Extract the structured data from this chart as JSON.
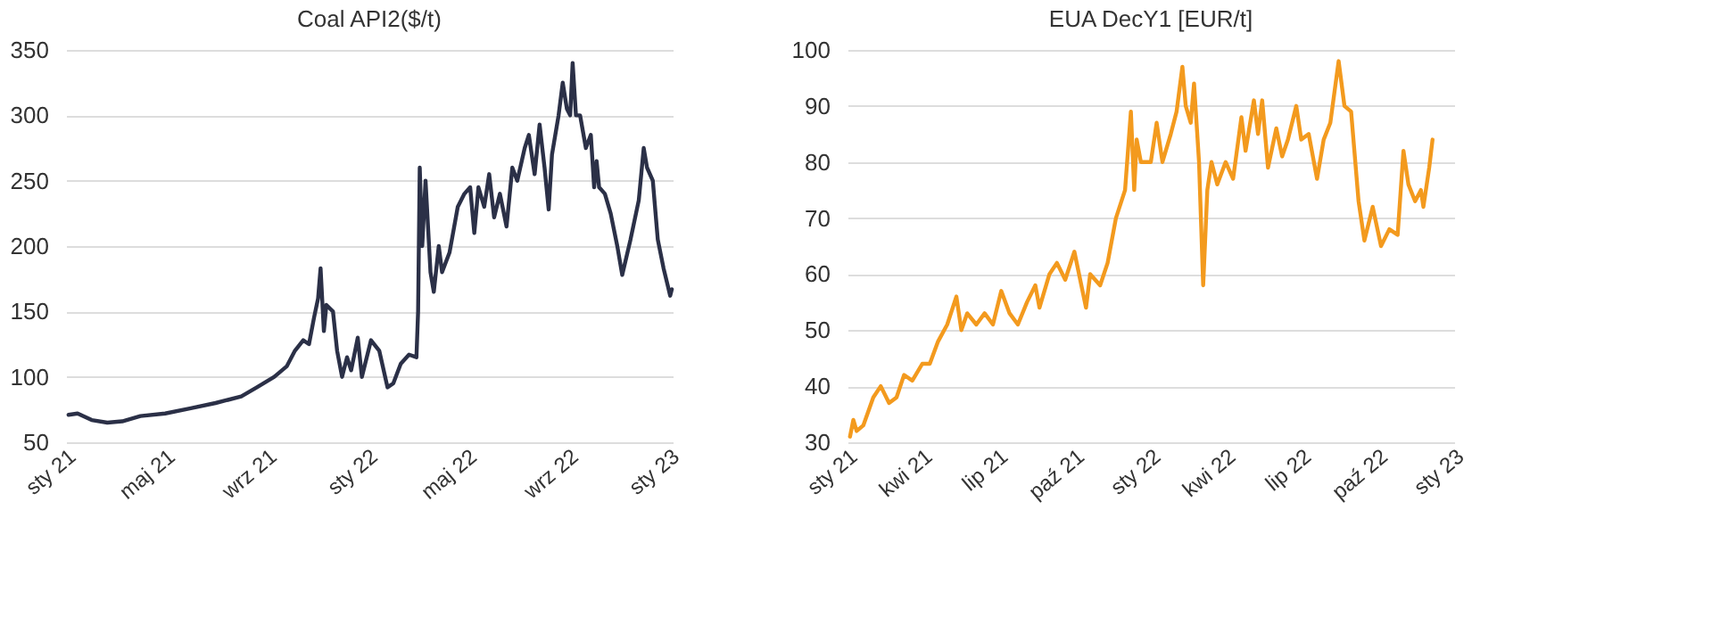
{
  "chart_data": [
    {
      "type": "line",
      "title": "Coal API2($/t)",
      "grid": "y",
      "line_style": "solid",
      "marker": "none",
      "x": [
        "2021-01-04",
        "2021-01-15",
        "2021-02-01",
        "2021-02-20",
        "2021-03-10",
        "2021-04-01",
        "2021-05-01",
        "2021-06-01",
        "2021-07-01",
        "2021-08-01",
        "2021-08-20",
        "2021-09-10",
        "2021-09-25",
        "2021-10-05",
        "2021-10-15",
        "2021-10-22",
        "2021-10-28",
        "2021-11-02",
        "2021-11-05",
        "2021-11-09",
        "2021-11-12",
        "2021-11-20",
        "2021-11-25",
        "2021-12-01",
        "2021-12-07",
        "2021-12-12",
        "2021-12-20",
        "2021-12-25",
        "2022-01-05",
        "2022-01-15",
        "2022-01-25",
        "2022-02-01",
        "2022-02-10",
        "2022-02-20",
        "2022-03-01",
        "2022-03-03",
        "2022-03-05",
        "2022-03-08",
        "2022-03-12",
        "2022-03-18",
        "2022-03-22",
        "2022-03-28",
        "2022-04-01",
        "2022-04-10",
        "2022-04-20",
        "2022-04-28",
        "2022-05-05",
        "2022-05-10",
        "2022-05-15",
        "2022-05-22",
        "2022-05-28",
        "2022-06-03",
        "2022-06-10",
        "2022-06-18",
        "2022-06-25",
        "2022-07-01",
        "2022-07-10",
        "2022-07-15",
        "2022-07-22",
        "2022-07-28",
        "2022-08-03",
        "2022-08-08",
        "2022-08-12",
        "2022-08-20",
        "2022-08-25",
        "2022-08-30",
        "2022-09-03",
        "2022-09-06",
        "2022-09-10",
        "2022-09-15",
        "2022-09-22",
        "2022-09-28",
        "2022-10-02",
        "2022-10-05",
        "2022-10-08",
        "2022-10-15",
        "2022-10-22",
        "2022-10-30",
        "2022-11-05",
        "2022-11-15",
        "2022-11-25",
        "2022-12-01",
        "2022-12-05",
        "2022-12-12",
        "2022-12-18",
        "2022-12-25",
        "2022-12-30",
        "2023-01-02",
        "2023-01-04"
      ],
      "series": [
        {
          "color": "#2b3047",
          "values": [
            71,
            72,
            67,
            65,
            66,
            70,
            72,
            76,
            80,
            85,
            92,
            100,
            108,
            120,
            128,
            125,
            145,
            160,
            183,
            135,
            155,
            150,
            120,
            100,
            115,
            105,
            130,
            100,
            128,
            120,
            92,
            95,
            110,
            117,
            115,
            150,
            260,
            200,
            250,
            180,
            165,
            200,
            180,
            195,
            230,
            240,
            245,
            210,
            245,
            230,
            255,
            222,
            240,
            215,
            260,
            250,
            275,
            285,
            255,
            293,
            260,
            228,
            270,
            300,
            325,
            305,
            300,
            340,
            300,
            300,
            275,
            285,
            245,
            265,
            245,
            240,
            225,
            200,
            178,
            205,
            235,
            275,
            260,
            250,
            205,
            183,
            170,
            162,
            167
          ]
        }
      ],
      "xlim": [
        "2021-01-01",
        "2023-01-05"
      ],
      "xticks": [
        {
          "value": "2021-01-01",
          "label": "sty 21"
        },
        {
          "value": "2021-05-01",
          "label": "maj 21"
        },
        {
          "value": "2021-09-01",
          "label": "wrz 21"
        },
        {
          "value": "2022-01-01",
          "label": "sty 22"
        },
        {
          "value": "2022-05-01",
          "label": "maj 22"
        },
        {
          "value": "2022-09-01",
          "label": "wrz 22"
        },
        {
          "value": "2023-01-01",
          "label": "sty 23"
        }
      ],
      "ylim": [
        50,
        350
      ],
      "yticks": [
        50,
        100,
        150,
        200,
        250,
        300,
        350
      ]
    },
    {
      "type": "line",
      "title": "EUA DecY1 [EUR/t]",
      "grid": "y",
      "line_style": "solid",
      "marker": "none",
      "x": [
        "2021-01-04",
        "2021-01-08",
        "2021-01-12",
        "2021-01-20",
        "2021-02-01",
        "2021-02-10",
        "2021-02-20",
        "2021-03-01",
        "2021-03-10",
        "2021-03-20",
        "2021-04-01",
        "2021-04-10",
        "2021-04-20",
        "2021-05-01",
        "2021-05-12",
        "2021-05-18",
        "2021-05-25",
        "2021-06-05",
        "2021-06-15",
        "2021-06-25",
        "2021-07-05",
        "2021-07-15",
        "2021-07-25",
        "2021-08-05",
        "2021-08-15",
        "2021-08-20",
        "2021-09-01",
        "2021-09-10",
        "2021-09-20",
        "2021-10-01",
        "2021-10-08",
        "2021-10-15",
        "2021-10-20",
        "2021-11-01",
        "2021-11-10",
        "2021-11-20",
        "2021-12-01",
        "2021-12-08",
        "2021-12-12",
        "2021-12-15",
        "2021-12-20",
        "2022-01-01",
        "2022-01-08",
        "2022-01-15",
        "2022-01-25",
        "2022-02-01",
        "2022-02-08",
        "2022-02-12",
        "2022-02-18",
        "2022-02-22",
        "2022-02-28",
        "2022-03-05",
        "2022-03-10",
        "2022-03-15",
        "2022-03-22",
        "2022-04-01",
        "2022-04-10",
        "2022-04-20",
        "2022-04-25",
        "2022-05-05",
        "2022-05-10",
        "2022-05-15",
        "2022-05-22",
        "2022-06-01",
        "2022-06-08",
        "2022-06-15",
        "2022-06-25",
        "2022-07-01",
        "2022-07-10",
        "2022-07-20",
        "2022-07-28",
        "2022-08-05",
        "2022-08-15",
        "2022-08-22",
        "2022-08-30",
        "2022-09-08",
        "2022-09-15",
        "2022-09-25",
        "2022-10-05",
        "2022-10-15",
        "2022-10-25",
        "2022-11-01",
        "2022-11-07",
        "2022-11-15",
        "2022-11-22",
        "2022-11-25",
        "2022-12-02",
        "2022-12-06"
      ],
      "series": [
        {
          "color": "#f39a1e",
          "values": [
            31,
            34,
            32,
            33,
            38,
            40,
            37,
            38,
            42,
            41,
            44,
            44,
            48,
            51,
            56,
            50,
            53,
            51,
            53,
            51,
            57,
            53,
            51,
            55,
            58,
            54,
            60,
            62,
            59,
            64,
            59,
            54,
            60,
            58,
            62,
            70,
            75,
            89,
            75,
            84,
            80,
            80,
            87,
            80,
            85,
            89,
            97,
            90,
            87,
            94,
            80,
            58,
            75,
            80,
            76,
            80,
            77,
            88,
            82,
            91,
            85,
            91,
            79,
            86,
            81,
            84,
            90,
            84,
            85,
            77,
            84,
            87,
            98,
            90,
            89,
            73,
            66,
            72,
            65,
            68,
            67,
            82,
            76,
            73,
            75,
            72,
            79,
            84
          ]
        }
      ],
      "xlim": [
        "2021-01-01",
        "2023-01-01"
      ],
      "xticks": [
        {
          "value": "2021-01-01",
          "label": "sty 21"
        },
        {
          "value": "2021-04-01",
          "label": "kwi 21"
        },
        {
          "value": "2021-07-01",
          "label": "lip 21"
        },
        {
          "value": "2021-10-01",
          "label": "paź 21"
        },
        {
          "value": "2022-01-01",
          "label": "sty 22"
        },
        {
          "value": "2022-04-01",
          "label": "kwi 22"
        },
        {
          "value": "2022-07-01",
          "label": "lip 22"
        },
        {
          "value": "2022-10-01",
          "label": "paź 22"
        },
        {
          "value": "2023-01-01",
          "label": "sty 23"
        }
      ],
      "ylim": [
        30,
        100
      ],
      "yticks": [
        30,
        40,
        50,
        60,
        70,
        80,
        90,
        100
      ]
    }
  ]
}
